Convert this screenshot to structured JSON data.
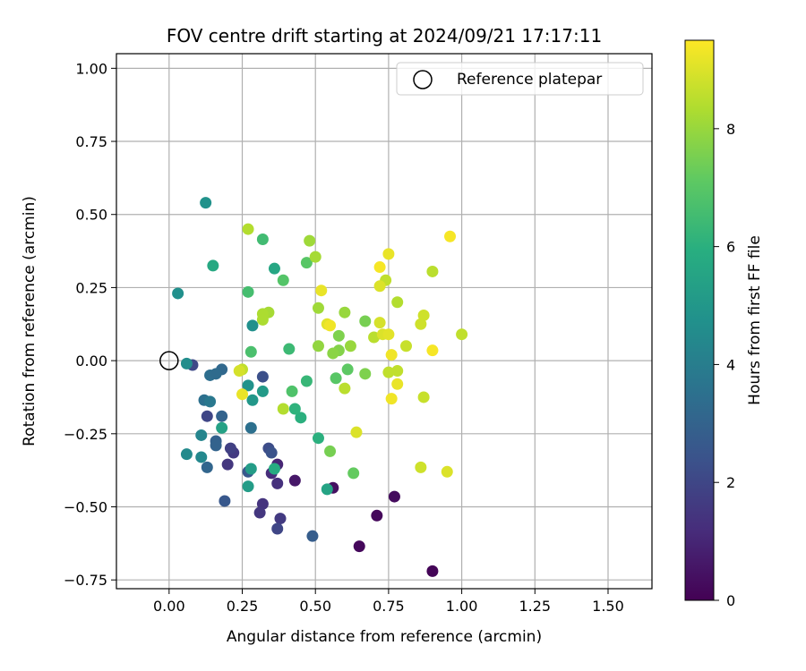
{
  "chart_data": {
    "type": "scatter",
    "title": "FOV centre drift starting at 2024/09/21 17:17:11",
    "xlabel": "Angular distance from reference (arcmin)",
    "ylabel": "Rotation from reference (arcmin)",
    "xlim": [
      -0.18,
      1.65
    ],
    "ylim": [
      -0.78,
      1.05
    ],
    "xticks": [
      0.0,
      0.25,
      0.5,
      0.75,
      1.0,
      1.25,
      1.5
    ],
    "xtick_labels": [
      "0.00",
      "0.25",
      "0.50",
      "0.75",
      "1.00",
      "1.25",
      "1.50"
    ],
    "yticks": [
      -0.75,
      -0.5,
      -0.25,
      0.0,
      0.25,
      0.5,
      0.75,
      1.0
    ],
    "ytick_labels": [
      "−0.75",
      "−0.50",
      "−0.25",
      "0.00",
      "0.25",
      "0.50",
      "0.75",
      "1.00"
    ],
    "grid": true,
    "legend": {
      "placement": "top-right",
      "entries": [
        "Reference platepar"
      ]
    },
    "reference_point": {
      "x": 0.0,
      "y": 0.0
    },
    "colorbar": {
      "label": "Hours from first FF file",
      "range": [
        0,
        9.5
      ],
      "ticks": [
        0,
        2,
        4,
        6,
        8
      ],
      "tick_labels": [
        "0",
        "2",
        "4",
        "6",
        "8"
      ],
      "colormap": "viridis"
    },
    "points": [
      {
        "x": 0.65,
        "y": -0.635,
        "c": 0.2
      },
      {
        "x": 0.9,
        "y": -0.72,
        "c": 0.1
      },
      {
        "x": 0.77,
        "y": -0.465,
        "c": 0.3
      },
      {
        "x": 0.71,
        "y": -0.53,
        "c": 0.2
      },
      {
        "x": 0.56,
        "y": -0.435,
        "c": 0.4
      },
      {
        "x": 0.43,
        "y": -0.41,
        "c": 0.6
      },
      {
        "x": 0.37,
        "y": -0.355,
        "c": 1.0
      },
      {
        "x": 0.35,
        "y": -0.385,
        "c": 1.2
      },
      {
        "x": 0.37,
        "y": -0.42,
        "c": 1.3
      },
      {
        "x": 0.32,
        "y": -0.49,
        "c": 1.4
      },
      {
        "x": 0.31,
        "y": -0.52,
        "c": 1.5
      },
      {
        "x": 0.38,
        "y": -0.54,
        "c": 1.6
      },
      {
        "x": 0.37,
        "y": -0.575,
        "c": 2.0
      },
      {
        "x": 0.49,
        "y": -0.6,
        "c": 2.8
      },
      {
        "x": 0.2,
        "y": -0.355,
        "c": 1.5
      },
      {
        "x": 0.22,
        "y": -0.315,
        "c": 1.6
      },
      {
        "x": 0.21,
        "y": -0.3,
        "c": 1.8
      },
      {
        "x": 0.13,
        "y": -0.19,
        "c": 2.0
      },
      {
        "x": 0.08,
        "y": -0.015,
        "c": 2.1
      },
      {
        "x": 0.34,
        "y": -0.3,
        "c": 2.2
      },
      {
        "x": 0.35,
        "y": -0.315,
        "c": 2.4
      },
      {
        "x": 0.32,
        "y": -0.055,
        "c": 2.3
      },
      {
        "x": 0.19,
        "y": -0.48,
        "c": 2.6
      },
      {
        "x": 0.27,
        "y": -0.38,
        "c": 2.6
      },
      {
        "x": 0.16,
        "y": -0.275,
        "c": 2.9
      },
      {
        "x": 0.16,
        "y": -0.29,
        "c": 3.0
      },
      {
        "x": 0.13,
        "y": -0.365,
        "c": 3.1
      },
      {
        "x": 0.18,
        "y": -0.19,
        "c": 3.0
      },
      {
        "x": 0.18,
        "y": -0.03,
        "c": 3.2
      },
      {
        "x": 0.14,
        "y": -0.05,
        "c": 3.4
      },
      {
        "x": 0.16,
        "y": -0.045,
        "c": 3.3
      },
      {
        "x": 0.28,
        "y": -0.23,
        "c": 3.5
      },
      {
        "x": 0.12,
        "y": -0.135,
        "c": 3.5
      },
      {
        "x": 0.14,
        "y": -0.14,
        "c": 3.8
      },
      {
        "x": 0.11,
        "y": -0.255,
        "c": 4.3
      },
      {
        "x": 0.11,
        "y": -0.33,
        "c": 4.4
      },
      {
        "x": 0.06,
        "y": -0.32,
        "c": 4.5
      },
      {
        "x": 0.06,
        "y": -0.01,
        "c": 4.6
      },
      {
        "x": 0.03,
        "y": 0.23,
        "c": 4.7
      },
      {
        "x": 0.125,
        "y": 0.54,
        "c": 4.8
      },
      {
        "x": 0.285,
        "y": 0.12,
        "c": 4.7
      },
      {
        "x": 0.27,
        "y": -0.085,
        "c": 4.8
      },
      {
        "x": 0.285,
        "y": -0.135,
        "c": 5.0
      },
      {
        "x": 0.32,
        "y": -0.105,
        "c": 5.1
      },
      {
        "x": 0.27,
        "y": -0.43,
        "c": 5.2
      },
      {
        "x": 0.28,
        "y": -0.37,
        "c": 5.2
      },
      {
        "x": 0.18,
        "y": -0.23,
        "c": 5.4
      },
      {
        "x": 0.54,
        "y": -0.44,
        "c": 5.5
      },
      {
        "x": 0.36,
        "y": 0.315,
        "c": 5.6
      },
      {
        "x": 0.15,
        "y": 0.325,
        "c": 5.7
      },
      {
        "x": 0.36,
        "y": -0.37,
        "c": 5.8
      },
      {
        "x": 0.51,
        "y": -0.265,
        "c": 6.0
      },
      {
        "x": 0.45,
        "y": -0.195,
        "c": 6.0
      },
      {
        "x": 0.43,
        "y": -0.165,
        "c": 6.1
      },
      {
        "x": 0.47,
        "y": -0.07,
        "c": 6.3
      },
      {
        "x": 0.41,
        "y": 0.04,
        "c": 6.4
      },
      {
        "x": 0.32,
        "y": 0.415,
        "c": 6.5
      },
      {
        "x": 0.27,
        "y": 0.235,
        "c": 6.6
      },
      {
        "x": 0.28,
        "y": 0.03,
        "c": 6.7
      },
      {
        "x": 0.42,
        "y": -0.105,
        "c": 6.8
      },
      {
        "x": 0.39,
        "y": 0.275,
        "c": 6.9
      },
      {
        "x": 0.47,
        "y": 0.335,
        "c": 7.0
      },
      {
        "x": 0.57,
        "y": -0.06,
        "c": 7.0
      },
      {
        "x": 0.61,
        "y": -0.03,
        "c": 7.1
      },
      {
        "x": 0.63,
        "y": -0.385,
        "c": 7.2
      },
      {
        "x": 0.55,
        "y": -0.31,
        "c": 7.5
      },
      {
        "x": 0.67,
        "y": -0.045,
        "c": 7.6
      },
      {
        "x": 0.67,
        "y": 0.135,
        "c": 7.5
      },
      {
        "x": 0.58,
        "y": 0.085,
        "c": 7.6
      },
      {
        "x": 0.58,
        "y": 0.035,
        "c": 7.7
      },
      {
        "x": 0.56,
        "y": 0.025,
        "c": 7.8
      },
      {
        "x": 0.51,
        "y": 0.05,
        "c": 7.9
      },
      {
        "x": 0.62,
        "y": 0.05,
        "c": 8.0
      },
      {
        "x": 0.6,
        "y": 0.165,
        "c": 8.0
      },
      {
        "x": 0.51,
        "y": 0.18,
        "c": 8.1
      },
      {
        "x": 0.48,
        "y": 0.41,
        "c": 8.1
      },
      {
        "x": 0.5,
        "y": 0.355,
        "c": 8.2
      },
      {
        "x": 0.34,
        "y": 0.165,
        "c": 8.2
      },
      {
        "x": 0.32,
        "y": 0.16,
        "c": 8.3
      },
      {
        "x": 0.32,
        "y": 0.14,
        "c": 8.3
      },
      {
        "x": 0.27,
        "y": 0.45,
        "c": 8.4
      },
      {
        "x": 0.39,
        "y": -0.165,
        "c": 8.4
      },
      {
        "x": 0.6,
        "y": -0.095,
        "c": 8.5
      },
      {
        "x": 0.7,
        "y": 0.08,
        "c": 8.5
      },
      {
        "x": 0.75,
        "y": -0.04,
        "c": 8.6
      },
      {
        "x": 0.74,
        "y": 0.275,
        "c": 8.6
      },
      {
        "x": 0.78,
        "y": 0.2,
        "c": 8.4
      },
      {
        "x": 0.78,
        "y": -0.035,
        "c": 8.6
      },
      {
        "x": 0.81,
        "y": 0.05,
        "c": 8.7
      },
      {
        "x": 0.86,
        "y": 0.125,
        "c": 8.8
      },
      {
        "x": 0.87,
        "y": 0.155,
        "c": 8.8
      },
      {
        "x": 0.9,
        "y": 0.305,
        "c": 8.5
      },
      {
        "x": 1.0,
        "y": 0.09,
        "c": 8.6
      },
      {
        "x": 0.87,
        "y": -0.125,
        "c": 8.7
      },
      {
        "x": 0.86,
        "y": -0.365,
        "c": 8.8
      },
      {
        "x": 0.95,
        "y": -0.38,
        "c": 9.0
      },
      {
        "x": 0.64,
        "y": -0.245,
        "c": 9.0
      },
      {
        "x": 0.72,
        "y": 0.13,
        "c": 8.9
      },
      {
        "x": 0.73,
        "y": 0.09,
        "c": 9.0
      },
      {
        "x": 0.75,
        "y": 0.09,
        "c": 9.1
      },
      {
        "x": 0.72,
        "y": 0.255,
        "c": 9.0
      },
      {
        "x": 0.75,
        "y": 0.365,
        "c": 9.2
      },
      {
        "x": 0.72,
        "y": 0.32,
        "c": 9.4
      },
      {
        "x": 0.52,
        "y": 0.24,
        "c": 9.2
      },
      {
        "x": 0.54,
        "y": 0.125,
        "c": 9.1
      },
      {
        "x": 0.55,
        "y": 0.12,
        "c": 9.3
      },
      {
        "x": 0.78,
        "y": -0.08,
        "c": 9.2
      },
      {
        "x": 0.76,
        "y": 0.02,
        "c": 9.3
      },
      {
        "x": 0.76,
        "y": -0.13,
        "c": 9.3
      },
      {
        "x": 0.9,
        "y": 0.035,
        "c": 9.4
      },
      {
        "x": 0.96,
        "y": 0.425,
        "c": 9.4
      },
      {
        "x": 0.25,
        "y": -0.03,
        "c": 8.6
      },
      {
        "x": 0.24,
        "y": -0.035,
        "c": 8.9
      },
      {
        "x": 0.25,
        "y": -0.115,
        "c": 9.2
      }
    ]
  }
}
